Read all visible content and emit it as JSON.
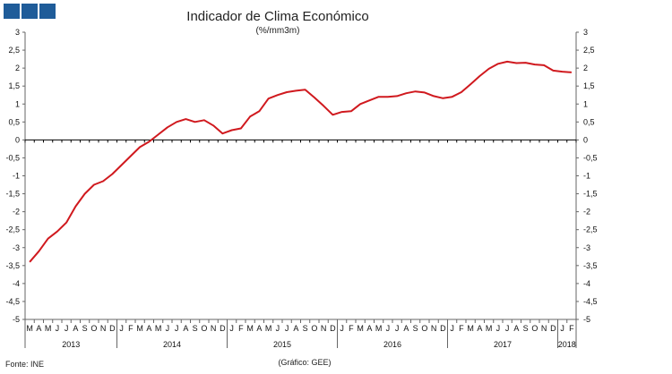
{
  "brand_color": "#1f5c99",
  "line_color": "#d0191e",
  "header": {
    "title": "Indicador de Clima Económico",
    "subtitle": "(%/mm3m)"
  },
  "footer": {
    "source": "Fonte: INE",
    "credit": "(Gráfico: GEE)"
  },
  "chart_data": {
    "type": "line",
    "title": "Indicador de Clima Económico",
    "subtitle": "(%/mm3m)",
    "ylim": [
      -5,
      3
    ],
    "yticks": [
      "3",
      "2,5",
      "2",
      "1,5",
      "1",
      "0,5",
      "0",
      "-0,5",
      "-1",
      "-1,5",
      "-2",
      "-2,5",
      "-3",
      "-3,5",
      "-4",
      "-4,5",
      "-5"
    ],
    "month_labels": [
      "M",
      "A",
      "M",
      "J",
      "J",
      "A",
      "S",
      "O",
      "N",
      "D",
      "J",
      "F",
      "M",
      "A",
      "M",
      "J",
      "J",
      "A",
      "S",
      "O",
      "N",
      "D",
      "J",
      "F",
      "M",
      "A",
      "M",
      "J",
      "J",
      "A",
      "S",
      "O",
      "N",
      "D",
      "J",
      "F",
      "M",
      "A",
      "M",
      "J",
      "J",
      "A",
      "S",
      "O",
      "N",
      "D",
      "J",
      "F",
      "M",
      "A",
      "M",
      "J",
      "J",
      "A",
      "S",
      "O",
      "N",
      "D",
      "J",
      "F"
    ],
    "years": [
      {
        "label": "2013",
        "start": 0,
        "months": 10
      },
      {
        "label": "2014",
        "start": 10,
        "months": 12
      },
      {
        "label": "2015",
        "start": 22,
        "months": 12
      },
      {
        "label": "2016",
        "start": 34,
        "months": 12
      },
      {
        "label": "2017",
        "start": 46,
        "months": 12
      },
      {
        "label": "2018",
        "start": 58,
        "months": 2
      }
    ],
    "grid": false,
    "series": [
      {
        "values": [
          -3.4,
          -3.1,
          -2.75,
          -2.55,
          -2.3,
          -1.85,
          -1.5,
          -1.25,
          -1.15,
          -0.95,
          -0.7,
          -0.45,
          -0.2,
          -0.05,
          0.15,
          0.35,
          0.5,
          0.58,
          0.5,
          0.55,
          0.4,
          0.18,
          0.27,
          0.32,
          0.65,
          0.8,
          1.15,
          1.25,
          1.33,
          1.37,
          1.4,
          1.18,
          0.95,
          0.7,
          0.78,
          0.8,
          1.0,
          1.1,
          1.2,
          1.2,
          1.22,
          1.3,
          1.35,
          1.32,
          1.22,
          1.16,
          1.2,
          1.33,
          1.55,
          1.78,
          1.98,
          2.12,
          2.18,
          2.14,
          2.15,
          2.1,
          2.08,
          1.93,
          1.9,
          1.88
        ]
      }
    ]
  }
}
